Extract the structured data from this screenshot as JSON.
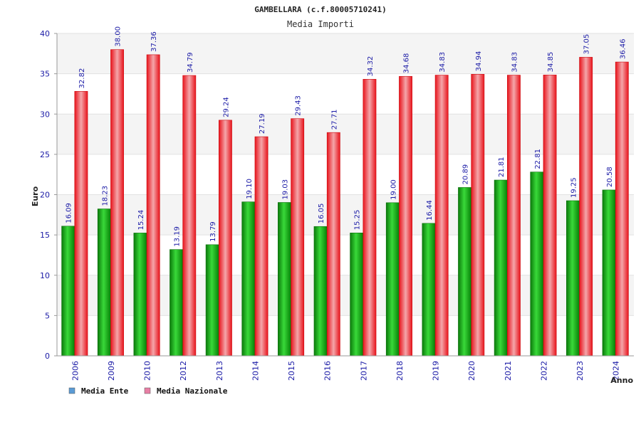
{
  "chart_data": {
    "type": "bar",
    "title": "GAMBELLARA (c.f.80005710241)",
    "subtitle": "Media Importi",
    "xlabel": "Anno",
    "ylabel": "Euro",
    "ylim": [
      0,
      40
    ],
    "yticks": [
      "0",
      "5",
      "10",
      "15",
      "20",
      "25",
      "30",
      "35",
      "40"
    ],
    "categories": [
      "2006",
      "2009",
      "2010",
      "2012",
      "2013",
      "2014",
      "2015",
      "2016",
      "2017",
      "2018",
      "2019",
      "2020",
      "2021",
      "2022",
      "2023",
      "2024"
    ],
    "series": [
      {
        "name": "Media Ente",
        "color": "#0aa50a",
        "values": [
          16.09,
          18.23,
          15.24,
          13.19,
          13.79,
          19.1,
          19.03,
          16.05,
          15.25,
          19.0,
          16.44,
          20.89,
          21.81,
          22.81,
          19.25,
          20.58
        ],
        "labels": [
          "16.09",
          "18.23",
          "15.24",
          "13.19",
          "13.79",
          "19.10",
          "19.03",
          "16.05",
          "15.25",
          "19.00",
          "16.44",
          "20.89",
          "21.81",
          "22.81",
          "19.25",
          "20.58"
        ]
      },
      {
        "name": "Media Nazionale",
        "color": "#ee1c1c",
        "values": [
          32.82,
          38.0,
          37.36,
          34.79,
          29.24,
          27.19,
          29.43,
          27.71,
          34.32,
          34.68,
          34.83,
          34.94,
          34.83,
          34.85,
          37.05,
          36.46
        ],
        "labels": [
          "32.82",
          "38.00",
          "37.36",
          "34.79",
          "29.24",
          "27.19",
          "29.43",
          "27.71",
          "34.32",
          "34.68",
          "34.83",
          "34.94",
          "34.83",
          "34.85",
          "37.05",
          "36.46"
        ]
      }
    ],
    "legend": [
      {
        "label": "Media Ente",
        "swatch": "#5b9bd5"
      },
      {
        "label": "Media Nazionale",
        "swatch": "#e87fa5"
      }
    ],
    "legend_position": "bottom-left",
    "grid": true
  }
}
